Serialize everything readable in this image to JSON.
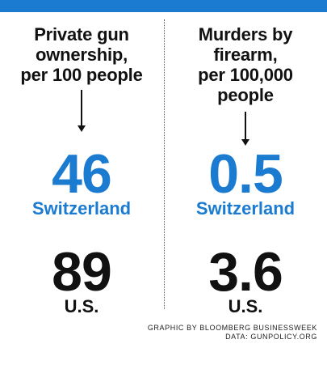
{
  "chart_data": {
    "type": "table",
    "columns": [
      {
        "heading_lines": [
          "Private gun",
          "ownership,",
          "per 100 people"
        ],
        "rows": [
          {
            "value": "46",
            "label": "Switzerland"
          },
          {
            "value": "89",
            "label": "U.S."
          }
        ]
      },
      {
        "heading_lines": [
          "Murders by",
          "firearm,",
          "per 100,000",
          "people"
        ],
        "rows": [
          {
            "value": "0.5",
            "label": "Switzerland"
          },
          {
            "value": "3.6",
            "label": "U.S."
          }
        ]
      }
    ],
    "credits": [
      "GRAPHIC BY BLOOMBERG BUSINESSWEEK",
      "DATA: GUNPOLICY.ORG"
    ]
  },
  "colors": {
    "accent": "#1a7bd1",
    "text": "#111111"
  }
}
